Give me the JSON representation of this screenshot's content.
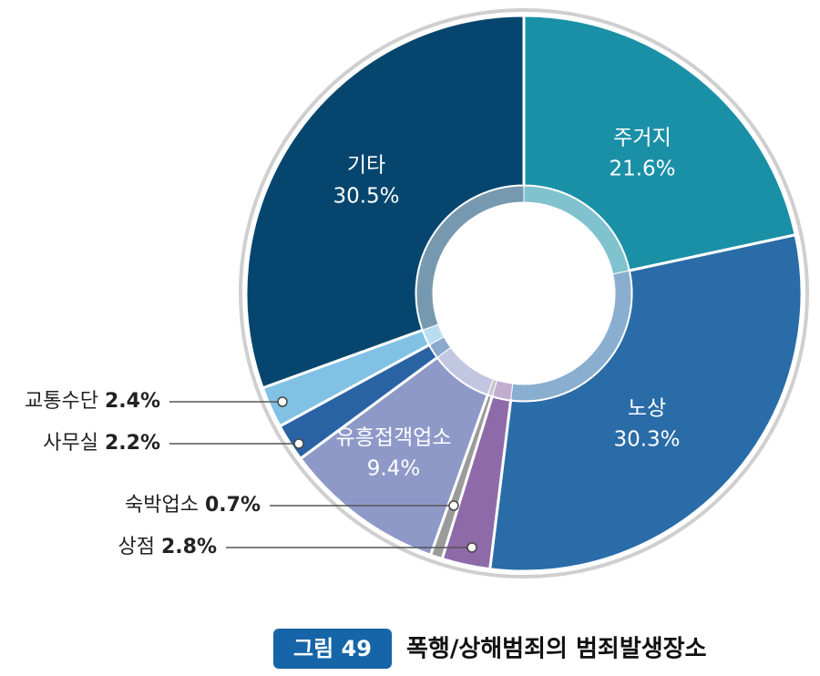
{
  "chart_data": {
    "type": "donut",
    "title": "폭행/상해범죄의 범죄발생장소",
    "figure_label": "그림 49",
    "categories": [
      "주거지",
      "노상",
      "상점",
      "숙박업소",
      "유흥접객업소",
      "사무실",
      "교통수단",
      "기타"
    ],
    "values": [
      21.6,
      30.3,
      2.8,
      0.7,
      9.4,
      2.2,
      2.4,
      30.5
    ],
    "value_labels": [
      "21.6%",
      "30.3%",
      "2.8%",
      "0.7%",
      "9.4%",
      "2.2%",
      "2.4%",
      "30.5%"
    ],
    "colors": [
      "#1a90a7",
      "#2a6ca8",
      "#8f6aa9",
      "#9b9b9b",
      "#8e99c8",
      "#2a63a4",
      "#80c1e4",
      "#06466e"
    ]
  }
}
